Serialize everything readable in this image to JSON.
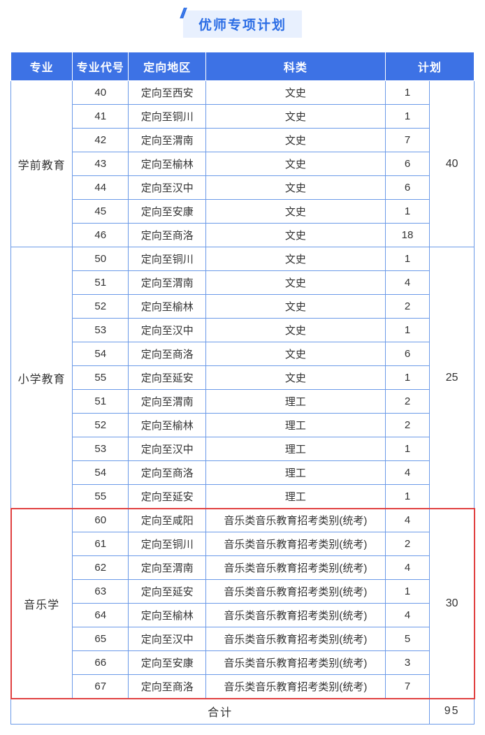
{
  "title": "优师专项计划",
  "header": {
    "major": "专业",
    "code": "专业代号",
    "region": "定向地区",
    "subject": "科类",
    "plan": "计划"
  },
  "groups": [
    {
      "major": "学前教育",
      "subtotal": 40,
      "highlight": false,
      "rows": [
        {
          "code": "40",
          "region": "定向至西安",
          "subject": "文史",
          "count": 1
        },
        {
          "code": "41",
          "region": "定向至铜川",
          "subject": "文史",
          "count": 1
        },
        {
          "code": "42",
          "region": "定向至渭南",
          "subject": "文史",
          "count": 7
        },
        {
          "code": "43",
          "region": "定向至榆林",
          "subject": "文史",
          "count": 6
        },
        {
          "code": "44",
          "region": "定向至汉中",
          "subject": "文史",
          "count": 6
        },
        {
          "code": "45",
          "region": "定向至安康",
          "subject": "文史",
          "count": 1
        },
        {
          "code": "46",
          "region": "定向至商洛",
          "subject": "文史",
          "count": 18
        }
      ]
    },
    {
      "major": "小学教育",
      "subtotal": 25,
      "highlight": false,
      "rows": [
        {
          "code": "50",
          "region": "定向至铜川",
          "subject": "文史",
          "count": 1
        },
        {
          "code": "51",
          "region": "定向至渭南",
          "subject": "文史",
          "count": 4
        },
        {
          "code": "52",
          "region": "定向至榆林",
          "subject": "文史",
          "count": 2
        },
        {
          "code": "53",
          "region": "定向至汉中",
          "subject": "文史",
          "count": 1
        },
        {
          "code": "54",
          "region": "定向至商洛",
          "subject": "文史",
          "count": 6
        },
        {
          "code": "55",
          "region": "定向至延安",
          "subject": "文史",
          "count": 1
        },
        {
          "code": "51",
          "region": "定向至渭南",
          "subject": "理工",
          "count": 2
        },
        {
          "code": "52",
          "region": "定向至榆林",
          "subject": "理工",
          "count": 2
        },
        {
          "code": "53",
          "region": "定向至汉中",
          "subject": "理工",
          "count": 1
        },
        {
          "code": "54",
          "region": "定向至商洛",
          "subject": "理工",
          "count": 4
        },
        {
          "code": "55",
          "region": "定向至延安",
          "subject": "理工",
          "count": 1
        }
      ]
    },
    {
      "major": "音乐学",
      "subtotal": 30,
      "highlight": true,
      "rows": [
        {
          "code": "60",
          "region": "定向至咸阳",
          "subject": "音乐类音乐教育招考类别(统考)",
          "count": 4
        },
        {
          "code": "61",
          "region": "定向至铜川",
          "subject": "音乐类音乐教育招考类别(统考)",
          "count": 2
        },
        {
          "code": "62",
          "region": "定向至渭南",
          "subject": "音乐类音乐教育招考类别(统考)",
          "count": 4
        },
        {
          "code": "63",
          "region": "定向至延安",
          "subject": "音乐类音乐教育招考类别(统考)",
          "count": 1
        },
        {
          "code": "64",
          "region": "定向至榆林",
          "subject": "音乐类音乐教育招考类别(统考)",
          "count": 4
        },
        {
          "code": "65",
          "region": "定向至汉中",
          "subject": "音乐类音乐教育招考类别(统考)",
          "count": 5
        },
        {
          "code": "66",
          "region": "定向至安康",
          "subject": "音乐类音乐教育招考类别(统考)",
          "count": 3
        },
        {
          "code": "67",
          "region": "定向至商洛",
          "subject": "音乐类音乐教育招考类别(统考)",
          "count": 7
        }
      ]
    }
  ],
  "footer": {
    "label": "合计",
    "total": 95
  },
  "styling": {
    "header_bg": "#3d72e5",
    "header_fg": "#ffffff",
    "border_color": "#6b9ae8",
    "title_bg": "#e8f0fe",
    "title_fg": "#2b6de5",
    "highlight_border": "#e04040",
    "body_bg": "#ffffff",
    "text_color": "#333333",
    "base_font_size": 15,
    "header_font_size": 16,
    "title_font_size": 19
  }
}
